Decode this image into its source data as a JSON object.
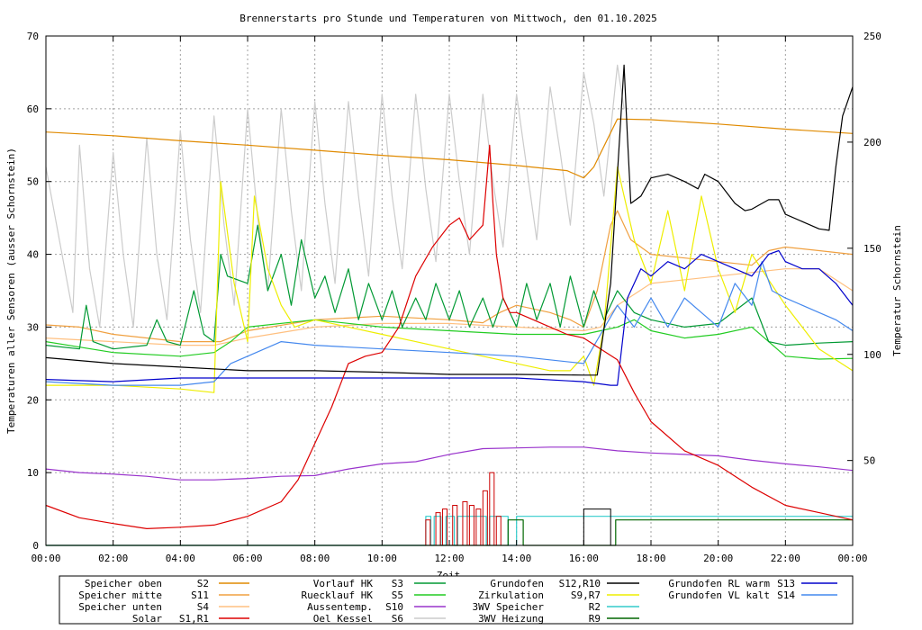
{
  "chart_data": {
    "type": "line",
    "title": "Brennerstarts pro Stunde und Temperaturen von Mittwoch, den 01.10.2025",
    "xlabel": "Zeit",
    "ylabel": "Temperaturen aller Sensoren (ausser Schornstein)",
    "y2label": "Temperatur Schornstein",
    "y2label_color": "#ff44ff",
    "xlim": [
      0,
      24
    ],
    "ylim": [
      0,
      70
    ],
    "y2lim": [
      10,
      250
    ],
    "grid": true,
    "xticks": [
      0,
      2,
      4,
      6,
      8,
      10,
      12,
      14,
      16,
      18,
      20,
      22,
      24
    ],
    "xtick_labels": [
      "00:00",
      "02:00",
      "04:00",
      "06:00",
      "08:00",
      "10:00",
      "12:00",
      "14:00",
      "16:00",
      "18:00",
      "20:00",
      "22:00",
      "00:00"
    ],
    "yticks": [
      0,
      10,
      20,
      30,
      40,
      50,
      60,
      70
    ],
    "ytick_labels": [
      "0",
      "10",
      "20",
      "30",
      "40",
      "50",
      "60",
      "70"
    ],
    "y2ticks": [
      50,
      100,
      150,
      200,
      250
    ],
    "y2tick_labels": [
      "50",
      "100",
      "150",
      "200",
      "250"
    ],
    "legend": [
      {
        "label": "Speicher oben",
        "code": "S2",
        "color": "#e08a00"
      },
      {
        "label": "Speicher mitte",
        "code": "S11",
        "color": "#f0a040"
      },
      {
        "label": "Speicher unten",
        "code": "S4",
        "color": "#ffc080"
      },
      {
        "label": "Solar",
        "code": "S1,R1",
        "color": "#dd0000"
      },
      {
        "label": "Vorlauf HK",
        "code": "S3",
        "color": "#009933"
      },
      {
        "label": "Ruecklauf HK",
        "code": "S5",
        "color": "#22cc22"
      },
      {
        "label": "Aussentemp.",
        "code": "S10",
        "color": "#9933cc"
      },
      {
        "label": "Oel Kessel",
        "code": "S6",
        "color": "#cccccc"
      },
      {
        "label": "Grundofen",
        "code": "S12,R10",
        "color": "#000000"
      },
      {
        "label": "Zirkulation",
        "code": "S9,R7",
        "color": "#eeee00"
      },
      {
        "label": "3WV Speicher",
        "code": "R2",
        "color": "#33cccc"
      },
      {
        "label": "3WV Heizung",
        "code": "R9",
        "color": "#006600"
      },
      {
        "label": "Grundofen RL warm",
        "code": "S13",
        "color": "#0000cc"
      },
      {
        "label": "Grundofen VL kalt",
        "code": "S14",
        "color": "#4488ee"
      }
    ],
    "series": [
      {
        "name": "Speicher oben",
        "code": "S2",
        "color": "#e08a00",
        "axis": "y",
        "x": [
          0,
          2,
          4,
          6,
          8,
          10,
          12,
          14,
          15.5,
          16,
          16.3,
          17,
          18,
          20,
          22,
          24
        ],
        "y": [
          56.8,
          56.3,
          55.6,
          55.0,
          54.3,
          53.6,
          53.0,
          52.2,
          51.5,
          50.5,
          52,
          58.6,
          58.5,
          57.9,
          57.2,
          56.6
        ]
      },
      {
        "name": "Speicher mitte",
        "code": "S11",
        "color": "#f0a040",
        "axis": "y",
        "x": [
          0,
          1,
          2,
          4,
          5.2,
          6,
          8,
          10,
          12,
          13,
          13.5,
          14,
          15,
          15.6,
          16,
          16.4,
          16.8,
          17,
          17.4,
          18,
          20,
          21,
          21.5,
          22,
          23,
          24
        ],
        "y": [
          30.3,
          30,
          29,
          28,
          28,
          29.5,
          31,
          31.5,
          31,
          30.6,
          32,
          33,
          32,
          31,
          30,
          35,
          44,
          46,
          42,
          40,
          39,
          38.5,
          40.5,
          41,
          40.5,
          40
        ]
      },
      {
        "name": "Speicher unten",
        "code": "S4",
        "color": "#ffc080",
        "axis": "y",
        "x": [
          0,
          2,
          4,
          5,
          6,
          8,
          10,
          12,
          14,
          16,
          16.5,
          17,
          18,
          20,
          22,
          23,
          24
        ],
        "y": [
          28.5,
          28,
          27.5,
          27.5,
          28.5,
          30,
          30.5,
          30.5,
          30,
          29.5,
          30,
          33,
          36,
          37,
          38,
          38,
          35
        ]
      },
      {
        "name": "Solar",
        "code": "S1,R1",
        "color": "#dd0000",
        "axis": "y",
        "x": [
          0,
          1,
          2,
          3,
          4,
          5,
          6,
          7,
          7.5,
          8,
          8.5,
          9,
          9.5,
          10,
          10.5,
          11,
          11.5,
          12,
          12.3,
          12.6,
          13,
          13.2,
          13.3,
          13.4,
          13.6,
          13.8,
          14,
          14.5,
          15,
          15.5,
          16,
          16.5,
          17,
          17.5,
          18,
          19,
          20,
          21,
          22,
          23,
          24
        ],
        "y": [
          5.5,
          3.8,
          3,
          2.3,
          2.5,
          2.8,
          4,
          6,
          9,
          14,
          19,
          25,
          26,
          26.5,
          30,
          37,
          41,
          44,
          45,
          42,
          44,
          55,
          47,
          40,
          34,
          32,
          32,
          31,
          30,
          29,
          28.5,
          27,
          25.5,
          21,
          17,
          13,
          11,
          8,
          5.5,
          4.5,
          3.5
        ]
      },
      {
        "name": "Vorlauf HK",
        "code": "S3",
        "color": "#009933",
        "axis": "y",
        "x": [
          0,
          1,
          1.2,
          1.4,
          2,
          3,
          3.3,
          3.6,
          4,
          4.4,
          4.7,
          5,
          5.2,
          5.4,
          6,
          6.3,
          6.6,
          7,
          7.3,
          7.6,
          8,
          8.3,
          8.6,
          9,
          9.3,
          9.6,
          10,
          10.3,
          10.6,
          11,
          11.3,
          11.6,
          12,
          12.3,
          12.6,
          13,
          13.3,
          13.6,
          14,
          14.3,
          14.6,
          15,
          15.3,
          15.6,
          16,
          16.3,
          16.6,
          17,
          17.5,
          18,
          19,
          20,
          21,
          21.5,
          22,
          23,
          24
        ],
        "y": [
          27.5,
          27,
          33,
          28,
          27,
          27.5,
          31,
          28,
          27.5,
          35,
          29,
          28,
          40,
          37,
          36,
          44,
          35,
          40,
          33,
          42,
          34,
          37,
          32,
          38,
          31,
          36,
          31,
          35,
          30,
          34,
          31,
          36,
          31,
          35,
          30,
          34,
          30,
          34,
          30,
          36,
          31,
          36,
          30,
          37,
          30,
          35,
          31,
          35,
          32,
          31,
          30,
          30.5,
          34,
          28,
          27.5,
          27.8,
          28
        ]
      },
      {
        "name": "Ruecklauf HK",
        "code": "S5",
        "color": "#22cc22",
        "axis": "y",
        "x": [
          0,
          2,
          4,
          5,
          5.5,
          6,
          8,
          10,
          12,
          14,
          16,
          16.5,
          17,
          17.5,
          18,
          19,
          20,
          21,
          21.5,
          22,
          23,
          24
        ],
        "y": [
          28,
          26.5,
          26,
          26.5,
          28,
          30,
          31,
          30,
          29.5,
          29,
          29,
          29.5,
          30,
          31,
          29.5,
          28.5,
          29,
          30,
          28,
          26,
          25.6,
          25.7
        ]
      },
      {
        "name": "Aussentemp.",
        "code": "S10",
        "color": "#9933cc",
        "axis": "y",
        "x": [
          0,
          1,
          2,
          3,
          4,
          5,
          6,
          7,
          8,
          9,
          10,
          11,
          12,
          13,
          14,
          15,
          16,
          17,
          18,
          19,
          20,
          21,
          22,
          23,
          24
        ],
        "y": [
          10.5,
          10,
          9.8,
          9.5,
          9,
          9,
          9.2,
          9.5,
          9.6,
          10.5,
          11.2,
          11.5,
          12.5,
          13.3,
          13.4,
          13.5,
          13.5,
          13,
          12.7,
          12.5,
          12.3,
          11.7,
          11.2,
          10.8,
          10.3
        ]
      },
      {
        "name": "Oel Kessel",
        "code": "S6",
        "color": "#cccccc",
        "axis": "y",
        "x": [
          0,
          0.4,
          0.8,
          1,
          1.3,
          1.6,
          2,
          2.3,
          2.6,
          3,
          3.3,
          3.6,
          4,
          4.3,
          4.6,
          5,
          5.3,
          5.6,
          6,
          6.3,
          6.6,
          7,
          7.3,
          7.6,
          8,
          8.3,
          8.6,
          9,
          9.3,
          9.6,
          10,
          10.3,
          10.6,
          11,
          11.3,
          11.6,
          12,
          12.3,
          12.6,
          13,
          13.3,
          13.6,
          14,
          14.3,
          14.6,
          15,
          15.3,
          15.6,
          16,
          16.3,
          16.6,
          17,
          17.2
        ],
        "y": [
          52,
          42,
          32,
          55,
          38,
          30,
          54,
          40,
          30,
          56,
          40,
          31,
          57,
          42,
          32,
          59,
          44,
          33,
          60,
          45,
          35,
          60,
          46,
          35,
          61,
          47,
          36,
          61,
          48,
          37,
          62,
          48,
          38,
          62,
          49,
          39,
          62,
          50,
          40,
          62,
          50,
          41,
          62,
          52,
          42,
          63,
          54,
          44,
          65,
          58,
          48,
          66,
          60
        ]
      },
      {
        "name": "Grundofen",
        "code": "S12,R10",
        "color": "#000000",
        "axis": "y",
        "x": [
          0,
          2,
          4,
          6,
          8,
          10,
          12,
          14,
          16,
          16.4,
          16.8,
          17,
          17.2,
          17.3,
          17.4,
          17.7,
          18,
          18.5,
          19,
          19.4,
          19.6,
          20,
          20.5,
          20.8,
          21,
          21.5,
          21.8,
          22,
          22.5,
          23,
          23.3,
          23.5,
          23.7,
          24
        ],
        "y": [
          25.8,
          25,
          24.5,
          24,
          24,
          23.8,
          23.5,
          23.5,
          23.4,
          23.4,
          36,
          51,
          66,
          56,
          47,
          48,
          50.5,
          51,
          50,
          49,
          51,
          50,
          47,
          46,
          46.2,
          47.5,
          47.5,
          45.5,
          44.5,
          43.5,
          43.3,
          52,
          59,
          63
        ]
      },
      {
        "name": "Zirkulation",
        "code": "S9,R7",
        "color": "#eeee00",
        "axis": "y",
        "x": [
          0,
          2,
          4,
          5,
          5.2,
          5.6,
          6,
          6.2,
          6.6,
          7,
          7.4,
          8,
          9,
          10,
          11,
          12,
          13,
          14,
          15,
          15.6,
          16,
          16.3,
          16.6,
          17,
          17.5,
          18,
          18.5,
          19,
          19.5,
          20,
          20.5,
          21,
          22,
          23,
          24
        ],
        "y": [
          22,
          22,
          21.5,
          21,
          50,
          36,
          28,
          48,
          38,
          33,
          30,
          31,
          30,
          29,
          28,
          27,
          26,
          25,
          24,
          24,
          26,
          22,
          30,
          52,
          42,
          36,
          46,
          35,
          48,
          38,
          32,
          40,
          33,
          27,
          24
        ]
      },
      {
        "name": "Grundofen RL warm",
        "code": "S13",
        "color": "#0000cc",
        "axis": "y",
        "x": [
          0,
          2,
          4,
          6,
          8,
          10,
          12,
          14,
          16,
          16.8,
          17,
          17.3,
          17.7,
          18,
          18.5,
          19,
          19.5,
          20,
          20.5,
          21,
          21.5,
          21.8,
          22,
          22.5,
          23,
          23.5,
          24
        ],
        "y": [
          22.8,
          22.5,
          23,
          23,
          23,
          23,
          23,
          23,
          22.5,
          22,
          22,
          34,
          38,
          37,
          39,
          38,
          40,
          39,
          38,
          37,
          40,
          40.5,
          39,
          38,
          38,
          36,
          33
        ]
      },
      {
        "name": "Grundofen VL kalt",
        "code": "S14",
        "color": "#4488ee",
        "axis": "y",
        "x": [
          0,
          2,
          4,
          5,
          5.5,
          6,
          7,
          8,
          10,
          12,
          14,
          16,
          16.5,
          17,
          17.5,
          18,
          18.5,
          19,
          19.5,
          20,
          20.5,
          21,
          21.3,
          21.6,
          22,
          22.5,
          23,
          23.5,
          24
        ],
        "y": [
          22.5,
          22,
          22,
          22.5,
          25,
          26,
          28,
          27.5,
          27,
          26.5,
          26,
          25,
          29,
          33,
          30,
          34,
          30,
          34,
          32,
          30,
          36,
          33,
          39,
          35,
          34,
          33,
          32,
          31,
          29.5
        ]
      },
      {
        "name": "3WV Speicher",
        "code": "R2",
        "color": "#33cccc",
        "axis": "y",
        "step": true,
        "x": [
          0,
          11.3,
          11.3,
          11.45,
          11.45,
          11.55,
          11.55,
          11.75,
          11.75,
          11.9,
          11.9,
          12.15,
          12.15,
          12.25,
          12.25,
          13.1,
          13.1,
          13.2,
          13.2,
          13.75,
          13.75,
          14.0,
          14.0,
          24
        ],
        "y": [
          0,
          0,
          4,
          4,
          0,
          0,
          4,
          4,
          0,
          0,
          4,
          4,
          0,
          0,
          4,
          4,
          0,
          0,
          4,
          4,
          0,
          0,
          4,
          4
        ]
      },
      {
        "name": "3WV Heizung",
        "code": "R9",
        "color": "#006600",
        "axis": "y",
        "step": true,
        "x": [
          0,
          13.75,
          13.75,
          14.2,
          14.2,
          16.95,
          16.95,
          24
        ],
        "y": [
          0,
          0,
          3.5,
          3.5,
          0,
          0,
          3.5,
          3.5
        ]
      }
    ],
    "brennerstarts": {
      "color": "#cc0000",
      "x": [
        11.3,
        11.6,
        11.8,
        12.1,
        12.4,
        12.6,
        12.8,
        13.0,
        13.2,
        13.4
      ],
      "y": [
        3.5,
        4.5,
        5,
        5.5,
        6,
        5.5,
        5,
        7.5,
        10,
        4
      ]
    },
    "grundofen_bars": {
      "color": "#000000",
      "x": [
        16.0,
        16.8
      ],
      "y": [
        5,
        5
      ]
    }
  }
}
